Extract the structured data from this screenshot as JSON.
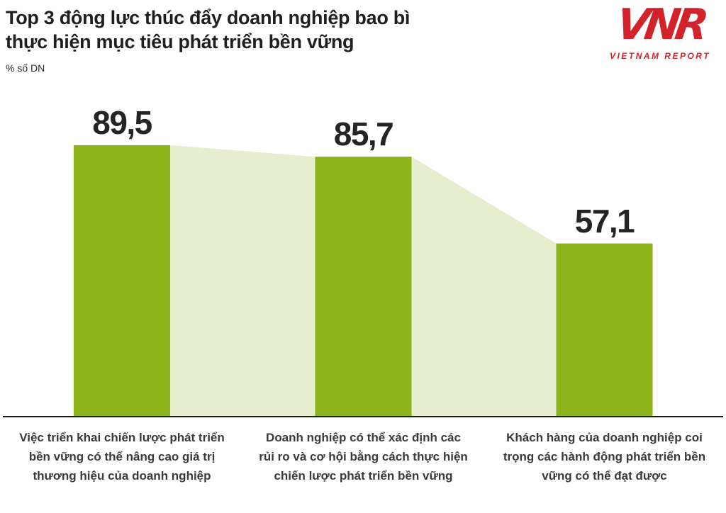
{
  "header": {
    "title_line1": "Top 3 động lực thúc đẩy doanh nghiệp bao bì",
    "title_line2": "thực hiện mục tiêu phát triển bền vững",
    "unit_label": "% số DN",
    "logo": {
      "acronym": "VNR",
      "subtext": "VIETNAM REPORT",
      "color": "#d2232a"
    }
  },
  "chart_data": {
    "type": "bar",
    "title": "Top 3 động lực thúc đẩy doanh nghiệp bao bì thực hiện mục tiêu phát triển bền vững",
    "ylabel": "% số DN",
    "categories": [
      "Việc triển khai chiến lược phát triển bền vững có thể nâng cao giá trị thương hiệu của doanh nghiệp",
      "Doanh nghiệp có thể xác định các rủi ro và cơ hội bằng cách thực hiện chiến lược phát triển bền vững",
      "Khách hàng của doanh nghiệp coi trọng các hành động phát triển bền vững có thể đạt được"
    ],
    "values": [
      89.5,
      85.7,
      57.1
    ],
    "value_labels": [
      "89,5",
      "85,7",
      "57,1"
    ],
    "ylim": [
      0,
      107
    ],
    "grid": false,
    "legend": false,
    "bar_color": "#8db31b",
    "area_color": "#e7eecf",
    "value_label_color": "#242424",
    "axis_line_color": "#1a1a1a"
  }
}
